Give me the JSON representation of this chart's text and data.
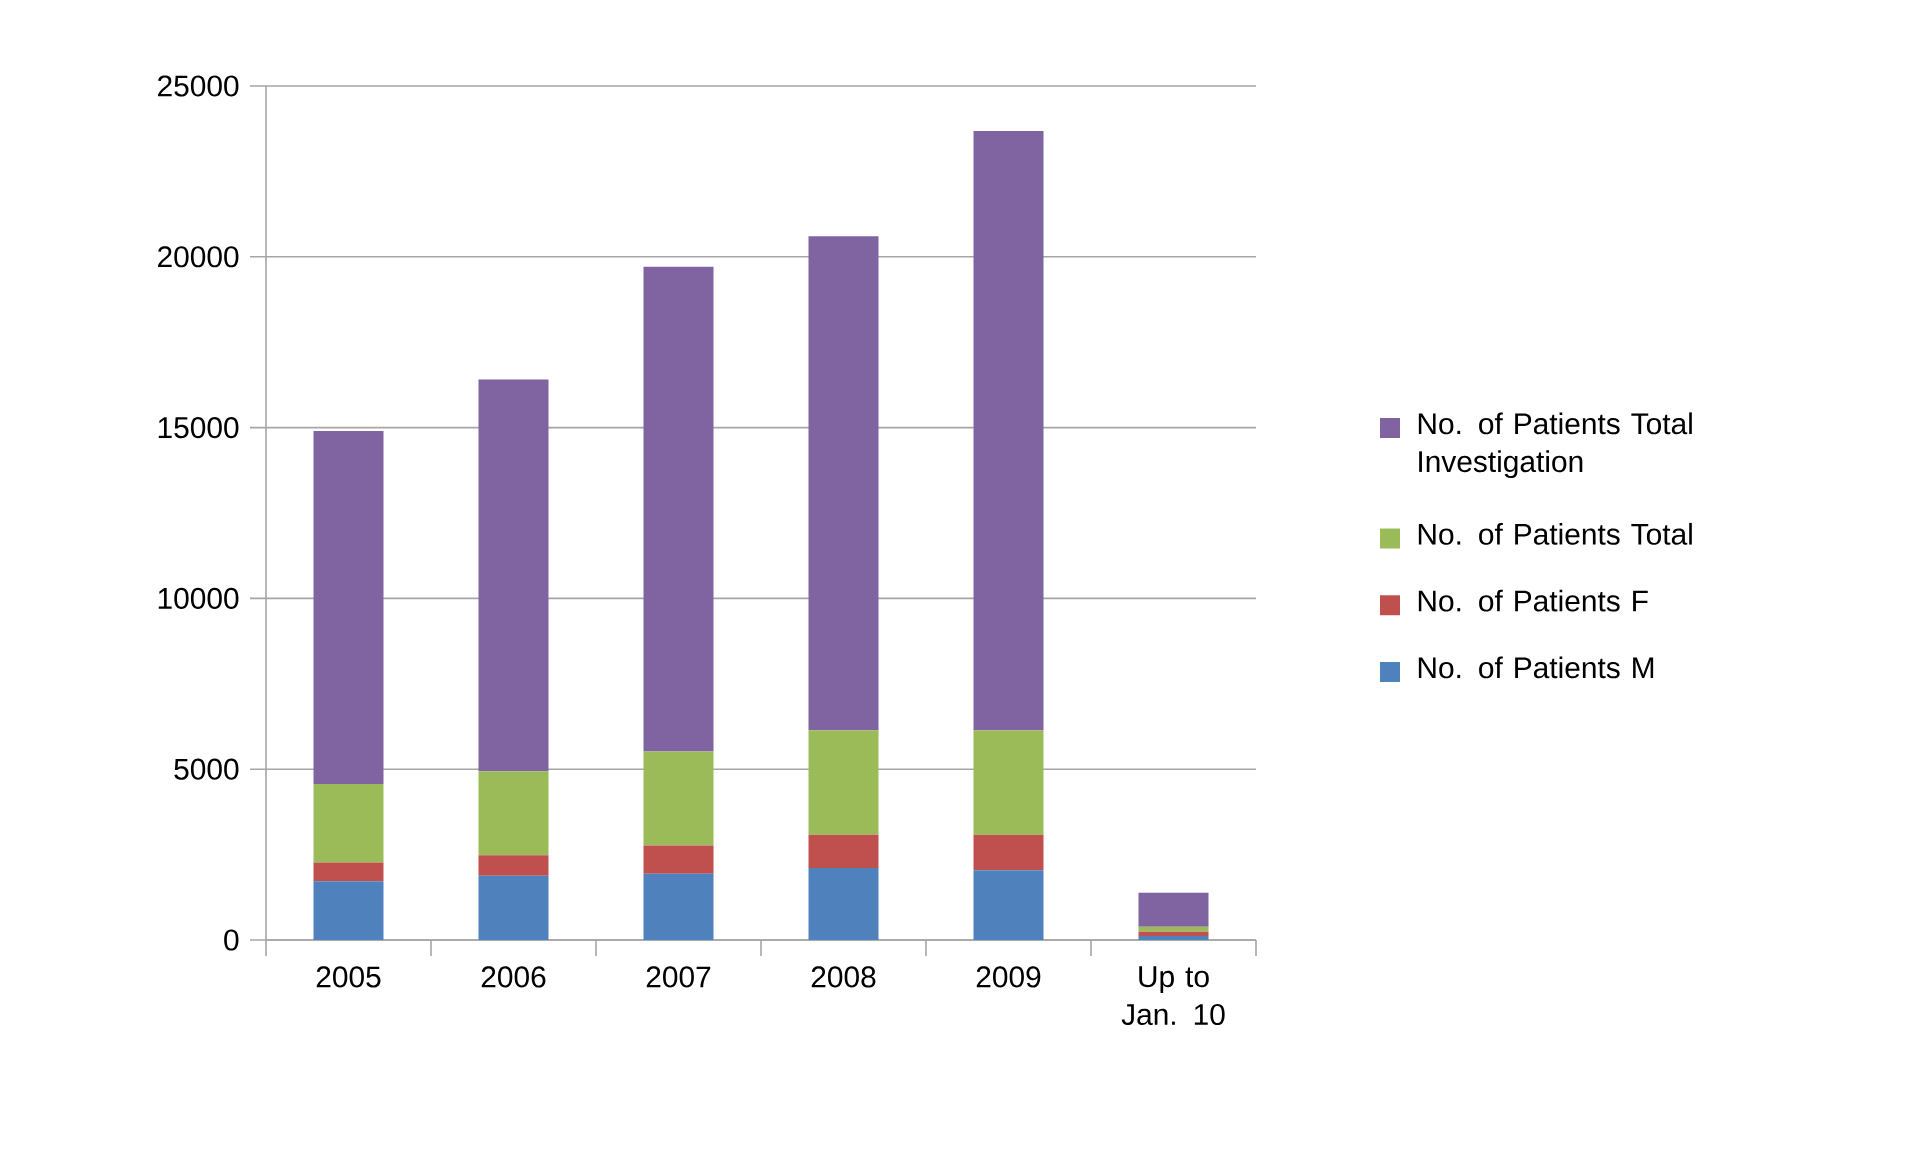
{
  "chart_data": {
    "type": "bar",
    "stacked": true,
    "categories": [
      "2005",
      "2006",
      "2007",
      "2008",
      "2009",
      "Up to Jan. 10"
    ],
    "series": [
      {
        "name": "No. of Patients M",
        "color": "#4f81bd",
        "values": [
          1720,
          1880,
          1940,
          2110,
          2040,
          120
        ]
      },
      {
        "name": "No. of Patients F",
        "color": "#c0504d",
        "values": [
          550,
          600,
          830,
          970,
          1040,
          120
        ]
      },
      {
        "name": "No. of Patients Total",
        "color": "#9bbb59",
        "values": [
          2300,
          2460,
          2750,
          3060,
          3060,
          150
        ]
      },
      {
        "name": "No. of Patients Total Investigation",
        "color": "#8064a2",
        "values": [
          10330,
          11470,
          14190,
          14460,
          17540,
          990
        ]
      }
    ],
    "ylim": [
      0,
      25000
    ],
    "yticks": [
      0,
      5000,
      10000,
      15000,
      20000,
      25000
    ],
    "grid": "y",
    "legend": "right"
  }
}
